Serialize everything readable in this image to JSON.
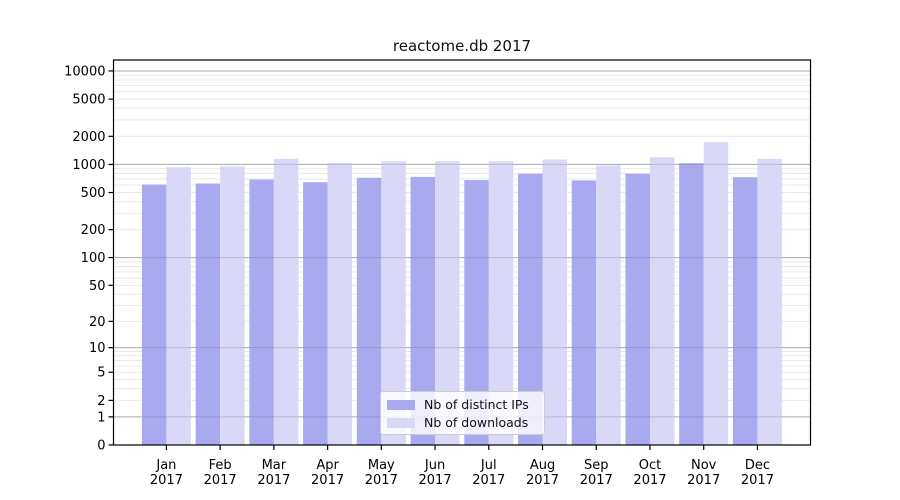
{
  "chart_data": {
    "type": "bar",
    "title": "reactome.db 2017",
    "categories": [
      "Jan 2017",
      "Feb 2017",
      "Mar 2017",
      "Apr 2017",
      "May 2017",
      "Jun 2017",
      "Jul 2017",
      "Aug 2017",
      "Sep 2017",
      "Oct 2017",
      "Nov 2017",
      "Dec 2017"
    ],
    "series": [
      {
        "name": "Nb of distinct IPs",
        "color": "#a9a9ef",
        "values": [
          610,
          625,
          690,
          645,
          720,
          735,
          680,
          795,
          675,
          795,
          1030,
          730
        ]
      },
      {
        "name": "Nb of downloads",
        "color": "#d9d9f7",
        "values": [
          935,
          950,
          1150,
          1040,
          1080,
          1080,
          1080,
          1130,
          975,
          1195,
          1740,
          1150
        ]
      }
    ],
    "xlabel": "",
    "ylabel": "",
    "yscale": "log10(1+value)",
    "ylim": [
      0,
      13100
    ],
    "y_ticks": [
      0,
      1,
      2,
      5,
      10,
      20,
      50,
      100,
      200,
      500,
      1000,
      2000,
      5000,
      10000
    ],
    "grid": {
      "major": "decades 1 to 10000, drawn over bars",
      "minor": "2-9 per decade, behind bars"
    },
    "legend": {
      "position": "inside-bottom-center"
    }
  },
  "colors": {
    "major_grid": "#c6c6c6",
    "minor_grid": "#e9e9e9",
    "axis": "#000000",
    "background": "#ffffff"
  }
}
